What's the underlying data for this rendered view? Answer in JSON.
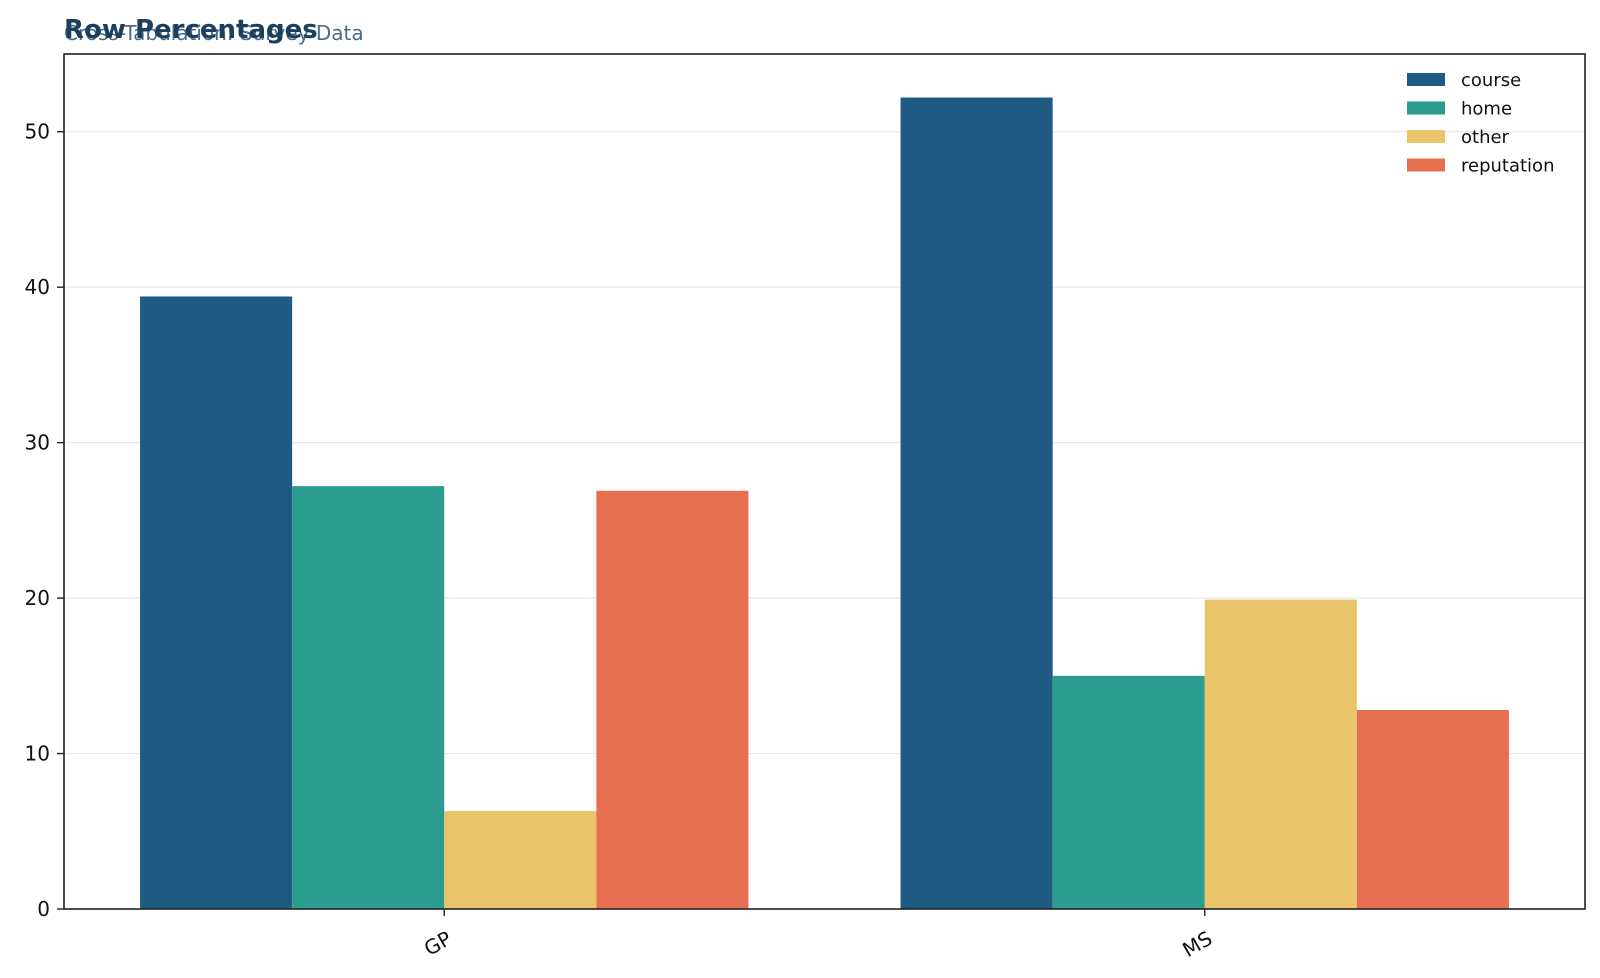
{
  "chart_data": {
    "type": "bar",
    "title": "Row Percentages",
    "subtitle": "Cross-Tabulation: Survey Data",
    "categories": [
      "GP",
      "MS"
    ],
    "series": [
      {
        "name": "course",
        "values": [
          39.4,
          52.2
        ],
        "color": "#1f5a82"
      },
      {
        "name": "home",
        "values": [
          27.2,
          15.0
        ],
        "color": "#2a9d8f"
      },
      {
        "name": "other",
        "values": [
          6.3,
          19.9
        ],
        "color": "#e9c46a"
      },
      {
        "name": "reputation",
        "values": [
          26.9,
          12.8
        ],
        "color": "#e76f51"
      }
    ],
    "ylim": [
      0,
      55
    ],
    "yticks": [
      0,
      10,
      20,
      30,
      40,
      50
    ],
    "grid": true,
    "legend_position": "top-right",
    "colors": {
      "title": "#1d3f5e",
      "subtitle": "#4a6b88",
      "grid": "#e9e9e9",
      "axis": "#222222"
    }
  }
}
